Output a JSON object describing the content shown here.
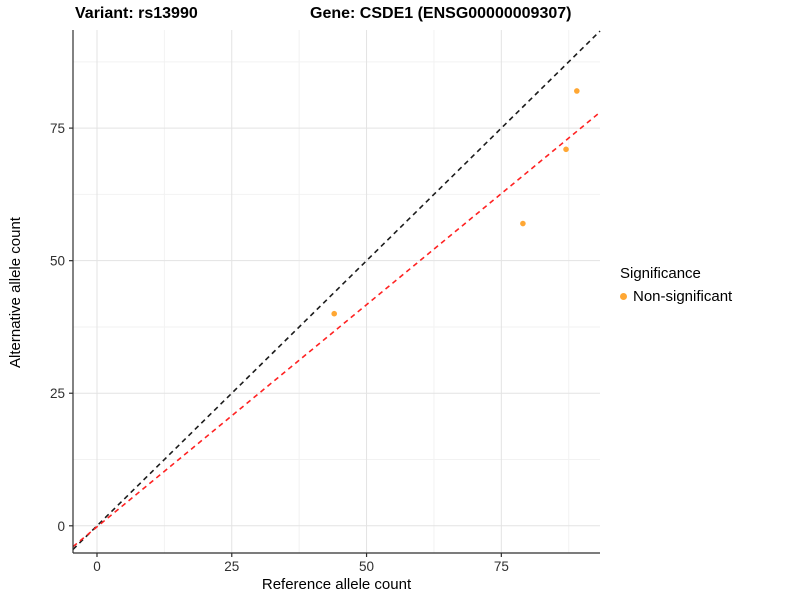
{
  "figure": {
    "title_left": "Variant: rs13990",
    "title_right": "Gene: CSDE1 (ENSG00000009307)"
  },
  "chart_data": {
    "type": "scatter",
    "title": "Variant: rs13990 — Gene: CSDE1 (ENSG00000009307)",
    "xlabel": "Reference allele count",
    "ylabel": "Alternative allele count",
    "xlim": [
      -4.45,
      93.3
    ],
    "ylim": [
      -5.13,
      93.5
    ],
    "x_ticks": [
      0,
      25,
      50,
      75
    ],
    "y_ticks": [
      0,
      25,
      50,
      75
    ],
    "x_minor_ticks": [
      12.5,
      37.5,
      62.5,
      87.5
    ],
    "y_minor_ticks": [
      12.5,
      37.5,
      62.5,
      87.5
    ],
    "grid": "major+minor",
    "series": [
      {
        "name": "Non-significant",
        "type": "scatter",
        "color": "#FFA733",
        "points": [
          {
            "x": 44,
            "y": 40
          },
          {
            "x": 79,
            "y": 57
          },
          {
            "x": 87,
            "y": 71
          },
          {
            "x": 89,
            "y": 82
          }
        ]
      }
    ],
    "lines": [
      {
        "name": "identity-line",
        "slope": 1.0,
        "intercept": 0.0,
        "color": "#1C1C1C",
        "style": "dashed"
      },
      {
        "name": "fit-line",
        "slope": 0.838,
        "intercept": -0.2,
        "color": "#FF2222",
        "style": "dashed"
      }
    ],
    "legend": {
      "position": "right",
      "title": "Significance",
      "items": [
        {
          "label": "Non-significant",
          "color": "#FFA733"
        }
      ]
    },
    "theme": {
      "panel_bg": "#FFFFFF",
      "grid_major": "#E3E3E3",
      "grid_minor": "#F2F2F2",
      "axis_line": "#2F2F2F",
      "tick_text": "#303030"
    }
  }
}
